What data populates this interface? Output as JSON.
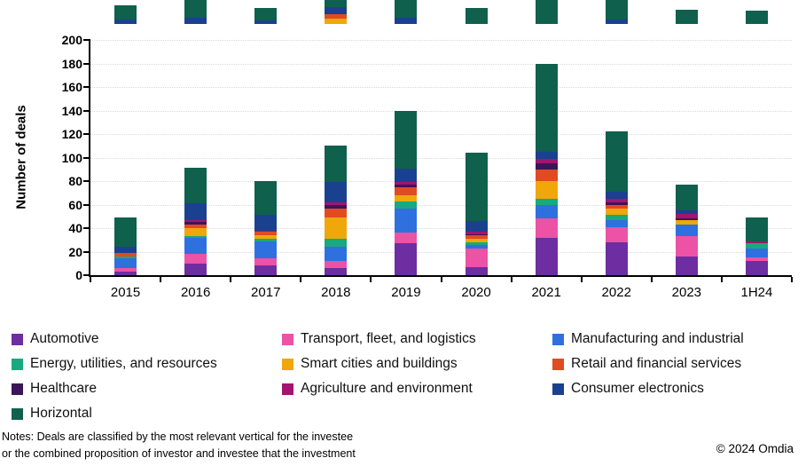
{
  "chart_data": {
    "type": "bar",
    "subtype": "stacked-vertical",
    "title": "",
    "ylabel": "Number of deals",
    "xlabel": "",
    "ylim": [
      0,
      200
    ],
    "ytick_step": 20,
    "grid": "horizontal-dotted",
    "legend_position": "bottom",
    "categories": [
      "2015",
      "2016",
      "2017",
      "2018",
      "2019",
      "2020",
      "2021",
      "2022",
      "2023",
      "1H24"
    ],
    "series": [
      {
        "name": "Automotive",
        "color": "#6C2EA0",
        "values": [
          3,
          10,
          8,
          6,
          27,
          7,
          32,
          28,
          16,
          12
        ]
      },
      {
        "name": "Transport, fleet, and logistics",
        "color": "#EC52A5",
        "values": [
          3,
          8,
          6,
          6,
          9,
          16,
          16,
          13,
          17,
          3
        ]
      },
      {
        "name": "Manufacturing and industrial",
        "color": "#2F70DF",
        "values": [
          8,
          14,
          15,
          12,
          21,
          3,
          12,
          6,
          10,
          8
        ]
      },
      {
        "name": "Energy, utilities, and resources",
        "color": "#18A97F",
        "values": [
          2,
          1,
          2,
          7,
          6,
          2,
          5,
          4,
          0,
          4
        ]
      },
      {
        "name": "Smart cities and buildings",
        "color": "#EFA70A",
        "values": [
          0,
          7,
          3,
          18,
          5,
          3,
          15,
          6,
          4,
          0
        ]
      },
      {
        "name": "Retail and financial services",
        "color": "#E04B22",
        "values": [
          3,
          3,
          3,
          8,
          7,
          3,
          10,
          3,
          0,
          0
        ]
      },
      {
        "name": "Healthcare",
        "color": "#3C1558",
        "values": [
          0,
          2,
          0,
          3,
          2,
          1,
          5,
          2,
          1,
          0
        ]
      },
      {
        "name": "Agriculture and environment",
        "color": "#A4136D",
        "values": [
          0,
          2,
          1,
          2,
          2,
          2,
          4,
          3,
          4,
          2
        ]
      },
      {
        "name": "Consumer electronics",
        "color": "#1A418F",
        "values": [
          5,
          14,
          13,
          17,
          12,
          9,
          6,
          6,
          3,
          0
        ]
      },
      {
        "name": "Horizontal",
        "color": "#0F604D",
        "values": [
          25,
          30,
          29,
          31,
          49,
          58,
          75,
          51,
          22,
          20
        ]
      }
    ],
    "totals": [
      49,
      91,
      80,
      110,
      140,
      104,
      180,
      122,
      77,
      49
    ]
  },
  "top_fragments": [
    {
      "category": "2015",
      "segments": [
        {
          "color": "#0F604D",
          "h": 16
        },
        {
          "color": "#1A418F",
          "h": 5
        }
      ]
    },
    {
      "category": "2016",
      "segments": [
        {
          "color": "#0F604D",
          "h": 20
        },
        {
          "color": "#1A418F",
          "h": 7
        }
      ]
    },
    {
      "category": "2017",
      "segments": [
        {
          "color": "#0F604D",
          "h": 14
        },
        {
          "color": "#1A418F",
          "h": 4
        }
      ]
    },
    {
      "category": "2018",
      "segments": [
        {
          "color": "#0F604D",
          "h": 8
        },
        {
          "color": "#1A418F",
          "h": 8
        },
        {
          "color": "#E04B22",
          "h": 5
        },
        {
          "color": "#EFA70A",
          "h": 6
        }
      ]
    },
    {
      "category": "2019",
      "segments": [
        {
          "color": "#0F604D",
          "h": 20
        },
        {
          "color": "#1A418F",
          "h": 7
        }
      ]
    },
    {
      "category": "2020",
      "segments": [
        {
          "color": "#0F604D",
          "h": 18
        }
      ]
    },
    {
      "category": "2021",
      "segments": [
        {
          "color": "#0F604D",
          "h": 27
        }
      ]
    },
    {
      "category": "2022",
      "segments": [
        {
          "color": "#0F604D",
          "h": 22
        },
        {
          "color": "#1A418F",
          "h": 5
        }
      ]
    },
    {
      "category": "2023",
      "segments": [
        {
          "color": "#0F604D",
          "h": 16
        }
      ]
    },
    {
      "category": "1H24",
      "segments": [
        {
          "color": "#0F604D",
          "h": 15
        }
      ]
    }
  ],
  "notes": {
    "line1": "Notes: Deals are classified by the most relevant vertical for the investee",
    "line2": "or the combined proposition of investor and investee that the investment"
  },
  "copyright": "© 2024 Omdia"
}
